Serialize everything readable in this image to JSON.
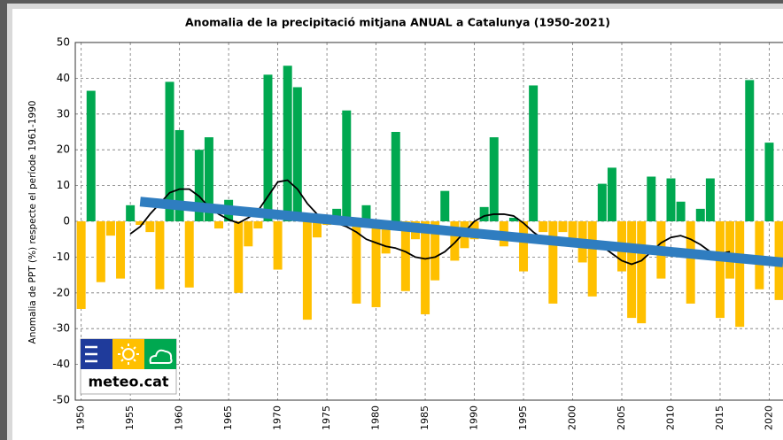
{
  "chart_data": {
    "type": "bar",
    "title": "Anomalia de la precipitació mitjana ANUAL a Catalunya (1950-2021)",
    "y_label": "Anomalia de PPT (%) respecte el període 1961-1990",
    "logo_text": "meteo.cat",
    "x": [
      1950,
      1951,
      1952,
      1953,
      1954,
      1955,
      1956,
      1957,
      1958,
      1959,
      1960,
      1961,
      1962,
      1963,
      1964,
      1965,
      1966,
      1967,
      1968,
      1969,
      1970,
      1971,
      1972,
      1973,
      1974,
      1975,
      1976,
      1977,
      1978,
      1979,
      1980,
      1981,
      1982,
      1983,
      1984,
      1985,
      1986,
      1987,
      1988,
      1989,
      1990,
      1991,
      1992,
      1993,
      1994,
      1995,
      1996,
      1997,
      1998,
      1999,
      2000,
      2001,
      2002,
      2003,
      2004,
      2005,
      2006,
      2007,
      2008,
      2009,
      2010,
      2011,
      2012,
      2013,
      2014,
      2015,
      2016,
      2017,
      2018,
      2019,
      2020,
      2021
    ],
    "values": [
      -24.5,
      36.5,
      -17,
      -4,
      -16,
      4.5,
      -1,
      -3,
      -19,
      39,
      25.5,
      -18.5,
      20,
      23.5,
      -2,
      6,
      -20,
      -7,
      -2,
      41,
      -13.5,
      43.5,
      37.5,
      -27.5,
      -4.5,
      -1,
      3.5,
      31,
      -23,
      4.5,
      -24,
      -9,
      25,
      -19.5,
      -5,
      -26,
      -16.5,
      8.5,
      -11,
      -7.5,
      -5,
      4,
      23.5,
      -7,
      1,
      -14,
      38,
      -3,
      -23,
      -3,
      -5,
      -11.5,
      -21,
      10.5,
      15,
      -14,
      -27,
      -28.5,
      12.5,
      -16,
      12,
      5.5,
      -23,
      3.5,
      12,
      -27,
      -16,
      -29.5,
      39.5,
      -19,
      22,
      -22
    ],
    "positive_color": "#00a850",
    "negative_color": "#ffc000",
    "smooth": {
      "color": "#000000",
      "x": [
        1955,
        1956,
        1957,
        1958,
        1959,
        1960,
        1961,
        1962,
        1963,
        1964,
        1965,
        1966,
        1967,
        1968,
        1969,
        1970,
        1971,
        1972,
        1973,
        1974,
        1975,
        1976,
        1977,
        1978,
        1979,
        1980,
        1981,
        1982,
        1983,
        1984,
        1985,
        1986,
        1987,
        1988,
        1989,
        1990,
        1991,
        1992,
        1993,
        1994,
        1995,
        1996,
        1997,
        1998,
        1999,
        2000,
        2001,
        2002,
        2003,
        2004,
        2005,
        2006,
        2007,
        2008,
        2009,
        2010,
        2011,
        2012,
        2013,
        2014,
        2015,
        2016
      ],
      "values": [
        -3.5,
        -1.5,
        2,
        5,
        8,
        9,
        9,
        7,
        4,
        2,
        0.5,
        -0.5,
        1,
        3,
        7,
        11,
        11.5,
        9,
        5,
        2,
        0.5,
        -0.5,
        -1.5,
        -3,
        -5,
        -6,
        -7,
        -7.5,
        -8.5,
        -10,
        -10.5,
        -10,
        -8.5,
        -6,
        -3,
        0,
        1.5,
        2,
        2,
        1.5,
        -0.5,
        -3,
        -5,
        -6,
        -6.5,
        -6.5,
        -6.5,
        -6.5,
        -7,
        -9,
        -11,
        -12,
        -11,
        -8.5,
        -6,
        -4.5,
        -4,
        -5,
        -6.5,
        -8.5,
        -9,
        -8.5
      ]
    },
    "trend": {
      "color": "#2f7dc0",
      "x": [
        1956,
        2021.4
      ],
      "values": [
        5.5,
        -11.5
      ]
    },
    "xlim": [
      1949.4,
      2021.4
    ],
    "ylim": [
      -50,
      50
    ],
    "xticks": [
      1950,
      1955,
      1960,
      1965,
      1970,
      1975,
      1980,
      1985,
      1990,
      1995,
      2000,
      2005,
      2010,
      2015,
      2020
    ],
    "yticks": [
      -50,
      -40,
      -30,
      -20,
      -10,
      0,
      10,
      20,
      30,
      40,
      50
    ],
    "grid": true
  }
}
